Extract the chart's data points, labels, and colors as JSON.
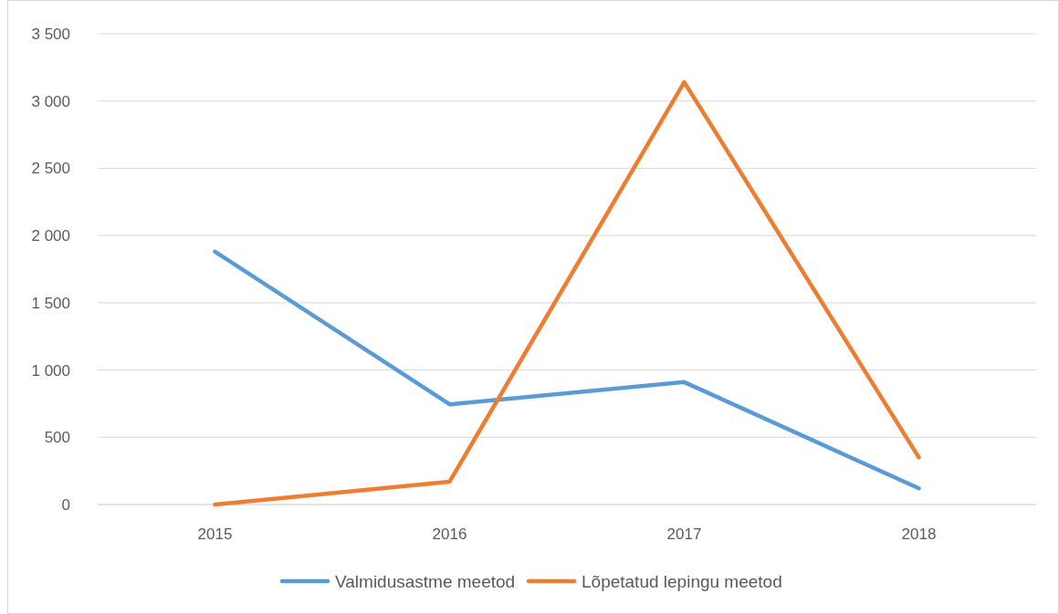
{
  "chart_data": {
    "type": "line",
    "categories": [
      "2015",
      "2016",
      "2017",
      "2018"
    ],
    "series": [
      {
        "name": "Valmidusastme meetod",
        "color": "#5b9bd5",
        "values": [
          1880,
          745,
          910,
          120
        ]
      },
      {
        "name": "Lõpetatud lepingu meetod",
        "color": "#ed7d31",
        "values": [
          0,
          170,
          3140,
          350
        ]
      }
    ],
    "ylim": [
      0,
      3500
    ],
    "yticks": [
      0,
      500,
      {
        "value": 1000,
        "label": "1 000"
      },
      {
        "value": 1500,
        "label": "1 500"
      },
      {
        "value": 2000,
        "label": "2 000"
      },
      {
        "value": 2500,
        "label": "2 500"
      },
      {
        "value": 3000,
        "label": "3 000"
      },
      {
        "value": 3500,
        "label": "3 500"
      }
    ],
    "grid": "y",
    "legend": "bottom",
    "marker": "none",
    "line_style": "solid"
  }
}
